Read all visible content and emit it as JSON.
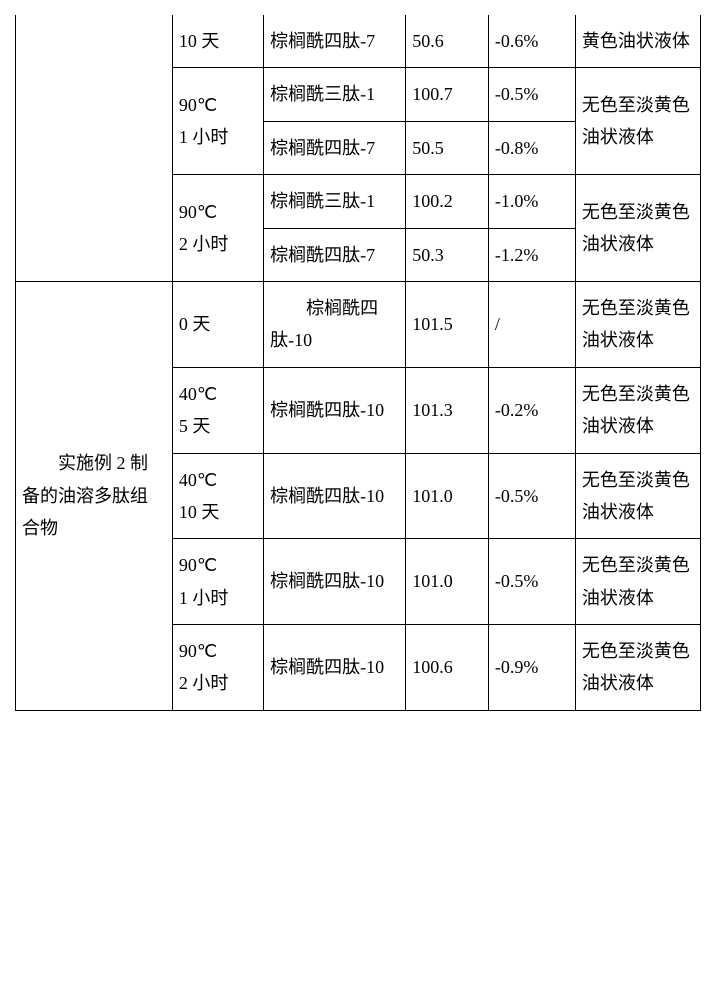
{
  "section1": {
    "rowLabel": "",
    "rows": [
      {
        "cond": "10 天",
        "peptide": "棕榈酰四肽-7",
        "val": "50.6",
        "pct": "-0.6%",
        "obs": "黄色油状液体"
      },
      {
        "cond": "90℃\n1 小时",
        "peptideA": "棕榈酰三肽-1",
        "valA": "100.7",
        "pctA": "-0.5%",
        "peptideB": "棕榈酰四肽-7",
        "valB": "50.5",
        "pctB": "-0.8%",
        "obs": "无色至淡黄色油状液体"
      },
      {
        "cond": "90℃\n2 小时",
        "peptideA": "棕榈酰三肽-1",
        "valA": "100.2",
        "pctA": "-1.0%",
        "peptideB": "棕榈酰四肽-7",
        "valB": "50.3",
        "pctB": "-1.2%",
        "obs": "无色至淡黄色油状液体"
      }
    ]
  },
  "section2": {
    "rowLabel": "　　实施例 2 制备的油溶多肽组合物",
    "rows": [
      {
        "cond": "0 天",
        "peptide": "　　棕榈酰四肽-10",
        "val": "101.5",
        "pct": "/",
        "obs": "无色至淡黄色油状液体"
      },
      {
        "cond": "40℃\n5 天",
        "peptide": "棕榈酰四肽-10",
        "val": "101.3",
        "pct": "-0.2%",
        "obs": "无色至淡黄色油状液体"
      },
      {
        "cond": "40℃\n10 天",
        "peptide": "棕榈酰四肽-10",
        "val": "101.0",
        "pct": "-0.5%",
        "obs": "无色至淡黄色油状液体"
      },
      {
        "cond": "90℃\n1 小时",
        "peptide": "棕榈酰四肽-10",
        "val": "101.0",
        "pct": "-0.5%",
        "obs": "无色至淡黄色油状液体"
      },
      {
        "cond": "90℃\n2 小时",
        "peptide": "棕榈酰四肽-10",
        "val": "100.6",
        "pct": "-0.9%",
        "obs": "无色至淡黄色油状液体"
      }
    ]
  }
}
